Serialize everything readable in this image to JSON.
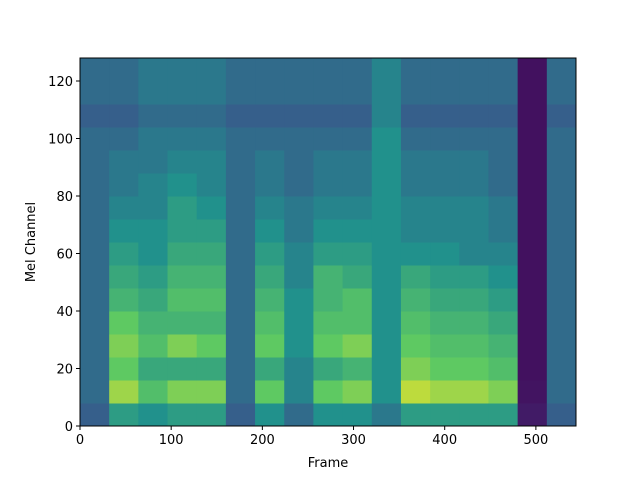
{
  "chart_data": {
    "type": "heatmap",
    "colormap": "viridis",
    "x_label": "Frame",
    "y_label": "Mel Channel",
    "xlim": [
      0,
      544
    ],
    "ylim": [
      0,
      128
    ],
    "xticks": [
      0,
      100,
      200,
      300,
      400,
      500
    ],
    "yticks": [
      0,
      20,
      40,
      60,
      80,
      100,
      120
    ],
    "z": [
      [
        0.3,
        0.55,
        0.5,
        0.55,
        0.55,
        0.3,
        0.5,
        0.35,
        0.5,
        0.5,
        0.4,
        0.55,
        0.55,
        0.55,
        0.55,
        0.08,
        0.3
      ],
      [
        0.35,
        0.85,
        0.7,
        0.8,
        0.8,
        0.35,
        0.75,
        0.45,
        0.75,
        0.8,
        0.5,
        0.9,
        0.85,
        0.85,
        0.8,
        0.06,
        0.35
      ],
      [
        0.35,
        0.75,
        0.6,
        0.6,
        0.6,
        0.35,
        0.6,
        0.45,
        0.6,
        0.65,
        0.5,
        0.8,
        0.75,
        0.75,
        0.7,
        0.05,
        0.35
      ],
      [
        0.35,
        0.8,
        0.7,
        0.8,
        0.75,
        0.35,
        0.75,
        0.5,
        0.75,
        0.8,
        0.5,
        0.75,
        0.7,
        0.7,
        0.65,
        0.05,
        0.35
      ],
      [
        0.35,
        0.75,
        0.65,
        0.65,
        0.65,
        0.35,
        0.7,
        0.5,
        0.7,
        0.7,
        0.5,
        0.7,
        0.65,
        0.65,
        0.6,
        0.05,
        0.35
      ],
      [
        0.35,
        0.65,
        0.6,
        0.7,
        0.7,
        0.35,
        0.65,
        0.5,
        0.65,
        0.7,
        0.5,
        0.65,
        0.6,
        0.6,
        0.55,
        0.05,
        0.35
      ],
      [
        0.35,
        0.6,
        0.55,
        0.65,
        0.65,
        0.35,
        0.6,
        0.45,
        0.65,
        0.6,
        0.5,
        0.6,
        0.55,
        0.55,
        0.5,
        0.05,
        0.35
      ],
      [
        0.35,
        0.55,
        0.5,
        0.6,
        0.6,
        0.35,
        0.55,
        0.45,
        0.55,
        0.55,
        0.5,
        0.5,
        0.5,
        0.45,
        0.45,
        0.05,
        0.35
      ],
      [
        0.35,
        0.5,
        0.5,
        0.55,
        0.55,
        0.35,
        0.5,
        0.4,
        0.5,
        0.5,
        0.5,
        0.45,
        0.45,
        0.45,
        0.4,
        0.05,
        0.35
      ],
      [
        0.35,
        0.45,
        0.45,
        0.55,
        0.5,
        0.35,
        0.45,
        0.4,
        0.45,
        0.45,
        0.5,
        0.45,
        0.45,
        0.45,
        0.4,
        0.05,
        0.35
      ],
      [
        0.35,
        0.4,
        0.45,
        0.5,
        0.45,
        0.35,
        0.4,
        0.35,
        0.4,
        0.4,
        0.5,
        0.4,
        0.4,
        0.4,
        0.35,
        0.05,
        0.35
      ],
      [
        0.35,
        0.4,
        0.4,
        0.45,
        0.45,
        0.35,
        0.4,
        0.35,
        0.4,
        0.4,
        0.5,
        0.4,
        0.4,
        0.4,
        0.35,
        0.05,
        0.35
      ],
      [
        0.35,
        0.35,
        0.4,
        0.4,
        0.4,
        0.35,
        0.35,
        0.35,
        0.35,
        0.35,
        0.5,
        0.35,
        0.35,
        0.35,
        0.35,
        0.05,
        0.35
      ],
      [
        0.3,
        0.3,
        0.35,
        0.35,
        0.35,
        0.3,
        0.3,
        0.3,
        0.3,
        0.3,
        0.45,
        0.3,
        0.3,
        0.3,
        0.3,
        0.05,
        0.3
      ],
      [
        0.35,
        0.35,
        0.4,
        0.4,
        0.4,
        0.35,
        0.35,
        0.35,
        0.35,
        0.35,
        0.45,
        0.35,
        0.35,
        0.35,
        0.35,
        0.05,
        0.35
      ],
      [
        0.35,
        0.35,
        0.4,
        0.4,
        0.4,
        0.35,
        0.35,
        0.35,
        0.35,
        0.35,
        0.45,
        0.35,
        0.35,
        0.35,
        0.35,
        0.05,
        0.35
      ]
    ]
  }
}
